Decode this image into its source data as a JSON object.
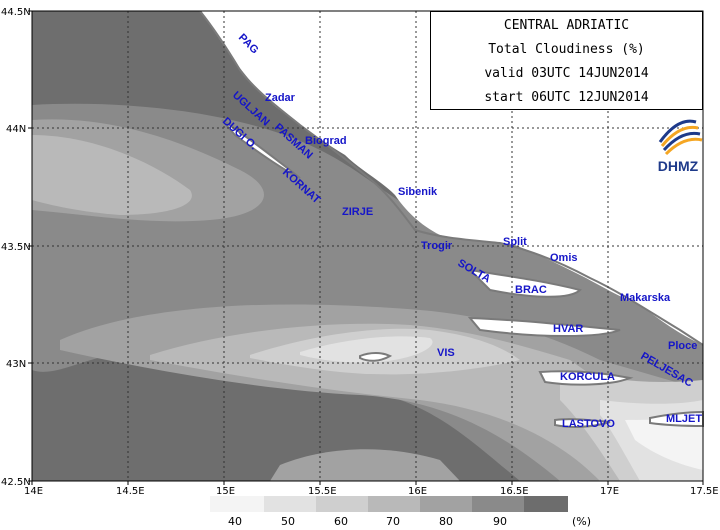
{
  "title": {
    "line1": "CENTRAL ADRIATIC",
    "line2": "Total Cloudiness (%)",
    "line3": "valid 03UTC 14JUN2014",
    "line4": "start 06UTC 12JUN2014"
  },
  "logo": {
    "text": "DHMZ",
    "icon": "dhmz-logo-icon"
  },
  "axes": {
    "lat_labels": [
      "44.5N",
      "44N",
      "43.5N",
      "43N",
      "42.5N"
    ],
    "lon_labels": [
      "14E",
      "14.5E",
      "15E",
      "15.5E",
      "16E",
      "16.5E",
      "17E",
      "17.5E"
    ],
    "lon_range": [
      14,
      17.5
    ],
    "lat_range": [
      42.5,
      44.5
    ]
  },
  "legend": {
    "labels": [
      "40",
      "50",
      "60",
      "70",
      "80",
      "90",
      "(%)"
    ],
    "colors": [
      "#f4f4f4",
      "#e2e2e2",
      "#cfcfcf",
      "#b9b9b9",
      "#a2a2a2",
      "#8a8a8a",
      "#6d6d6d"
    ]
  },
  "places": [
    {
      "name": "PAG"
    },
    {
      "name": "Zadar"
    },
    {
      "name": "UGLJAN"
    },
    {
      "name": "PASMAN"
    },
    {
      "name": "Biograd"
    },
    {
      "name": "DUGI O."
    },
    {
      "name": "KORNAT"
    },
    {
      "name": "Sibenik"
    },
    {
      "name": "ZIRJE"
    },
    {
      "name": "Trogir"
    },
    {
      "name": "Split"
    },
    {
      "name": "SOLTA"
    },
    {
      "name": "Omis"
    },
    {
      "name": "BRAC"
    },
    {
      "name": "Makarska"
    },
    {
      "name": "HVAR"
    },
    {
      "name": "VIS"
    },
    {
      "name": "Ploce"
    },
    {
      "name": "PELJESAC"
    },
    {
      "name": "KORCULA"
    },
    {
      "name": "MLJET"
    },
    {
      "name": "LASTOVO"
    }
  ],
  "colors": {
    "sea_dark": "#6e6e6e",
    "land": "#ffffff",
    "label_blue": "#1515c8"
  }
}
